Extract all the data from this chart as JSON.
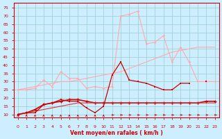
{
  "title": "",
  "xlabel": "Vent moyen/en rafales ( km/h )",
  "bg_color": "#cceeff",
  "grid_color": "#99cccc",
  "x": [
    0,
    1,
    2,
    3,
    4,
    5,
    6,
    7,
    8,
    9,
    10,
    11,
    12,
    13,
    14,
    15,
    16,
    17,
    18,
    19,
    20,
    21,
    22,
    23
  ],
  "line_pink_upper": [
    25,
    25,
    26,
    31,
    27,
    36,
    32,
    32,
    26,
    27,
    26,
    27,
    70,
    71,
    73,
    53,
    54,
    58,
    42,
    51,
    42,
    30,
    30,
    30
  ],
  "line_pink_trend": [
    25,
    26,
    27,
    28,
    29,
    30,
    30,
    31,
    32,
    33,
    34,
    35,
    36,
    38,
    40,
    42,
    44,
    46,
    48,
    49,
    50,
    51,
    51,
    51
  ],
  "line_red_peak": [
    10,
    11,
    11,
    16,
    17,
    19,
    18,
    18,
    14,
    11,
    15,
    34,
    42,
    31,
    30,
    29,
    27,
    25,
    25,
    29,
    29,
    null,
    30,
    null
  ],
  "line_red_flat_upper": [
    10,
    11,
    13,
    16,
    17,
    18,
    19,
    19,
    18,
    17,
    17,
    17,
    17,
    17,
    17,
    17,
    17,
    17,
    17,
    17,
    17,
    17,
    18,
    18
  ],
  "line_red_flat_lower": [
    10,
    11,
    12,
    13,
    14,
    15,
    16,
    17,
    17,
    17,
    17,
    17,
    17,
    17,
    17,
    17,
    17,
    17,
    17,
    17,
    17,
    17,
    17,
    17
  ],
  "ylim": [
    8,
    78
  ],
  "xlim": [
    -0.5,
    23.5
  ],
  "yticks": [
    10,
    15,
    20,
    25,
    30,
    35,
    40,
    45,
    50,
    55,
    60,
    65,
    70,
    75
  ],
  "xticks": [
    0,
    1,
    2,
    3,
    4,
    5,
    6,
    7,
    8,
    9,
    10,
    11,
    12,
    13,
    14,
    15,
    16,
    17,
    18,
    19,
    20,
    21,
    22,
    23
  ],
  "color_pink": "#ffaaaa",
  "color_darkred": "#cc0000",
  "color_red": "#dd3333",
  "arrow_switch": 11
}
